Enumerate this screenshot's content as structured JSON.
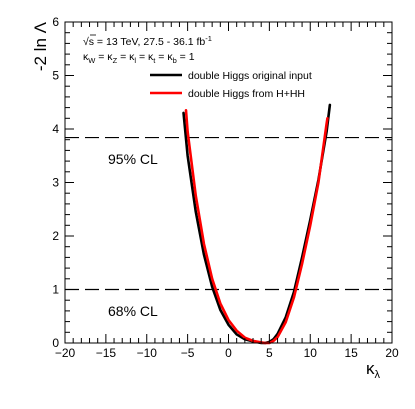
{
  "chart_data": {
    "type": "line",
    "title": "",
    "xlabel": "κ",
    "xlabel_sub": "λ",
    "ylabel": "-2 ln Λ",
    "xlim": [
      -20,
      20
    ],
    "ylim": [
      0,
      6
    ],
    "x_ticks": [
      "−20",
      "−15",
      "−10",
      "−5",
      "0",
      "5",
      "10",
      "15",
      "20"
    ],
    "x_tick_values": [
      -20,
      -15,
      -10,
      -5,
      0,
      5,
      10,
      15,
      20
    ],
    "y_ticks": [
      "0",
      "1",
      "2",
      "3",
      "4",
      "5",
      "6"
    ],
    "y_tick_values": [
      0,
      1,
      2,
      3,
      4,
      5,
      6
    ],
    "grid": false,
    "legend_position": "top-right",
    "annotations": {
      "energy_line": {
        "sqrt": "√",
        "rest": "s = 13 TeV, 27.5 - 36.1 fb",
        "sup": "-1"
      },
      "kappa_line": {
        "parts": [
          {
            "text": "κ",
            "sub": "W"
          },
          {
            "text": " = κ",
            "sub": "Z"
          },
          {
            "text": " = κ",
            "sub": "l"
          },
          {
            "text": " = κ",
            "sub": "t"
          },
          {
            "text": " = κ",
            "sub": "b"
          },
          {
            "text": " = 1",
            "sub": ""
          }
        ]
      }
    },
    "reference_lines": [
      {
        "y": 3.84,
        "label": "95% CL",
        "style": "dashed"
      },
      {
        "y": 1.0,
        "label": "68% CL",
        "style": "dashed"
      }
    ],
    "series": [
      {
        "name": "double Higgs original input",
        "color": "#000000",
        "x": [
          -5.5,
          -5.0,
          -4.0,
          -3.0,
          -2.0,
          -1.0,
          0.0,
          1.0,
          2.0,
          3.0,
          4.0,
          4.5,
          5.0,
          5.5,
          6.0,
          7.0,
          8.0,
          9.0,
          10.0,
          11.0,
          12.0,
          12.4
        ],
        "y": [
          4.3,
          3.5,
          2.45,
          1.65,
          1.05,
          0.62,
          0.34,
          0.16,
          0.07,
          0.03,
          0.0,
          0.0,
          0.02,
          0.07,
          0.17,
          0.48,
          0.95,
          1.6,
          2.3,
          3.05,
          3.95,
          4.45
        ]
      },
      {
        "name": "double Higgs from H+HH",
        "color": "#ff0000",
        "x": [
          -5.2,
          -5.0,
          -4.0,
          -3.0,
          -2.0,
          -1.0,
          0.0,
          1.0,
          2.0,
          3.0,
          4.0,
          4.5,
          5.0,
          5.5,
          6.0,
          7.0,
          8.0,
          9.0,
          10.0,
          11.0,
          12.0,
          12.1
        ],
        "y": [
          4.35,
          3.95,
          2.75,
          1.85,
          1.2,
          0.74,
          0.43,
          0.23,
          0.1,
          0.04,
          0.01,
          0.0,
          0.0,
          0.04,
          0.11,
          0.39,
          0.85,
          1.48,
          2.2,
          3.0,
          4.1,
          4.2
        ]
      }
    ]
  }
}
